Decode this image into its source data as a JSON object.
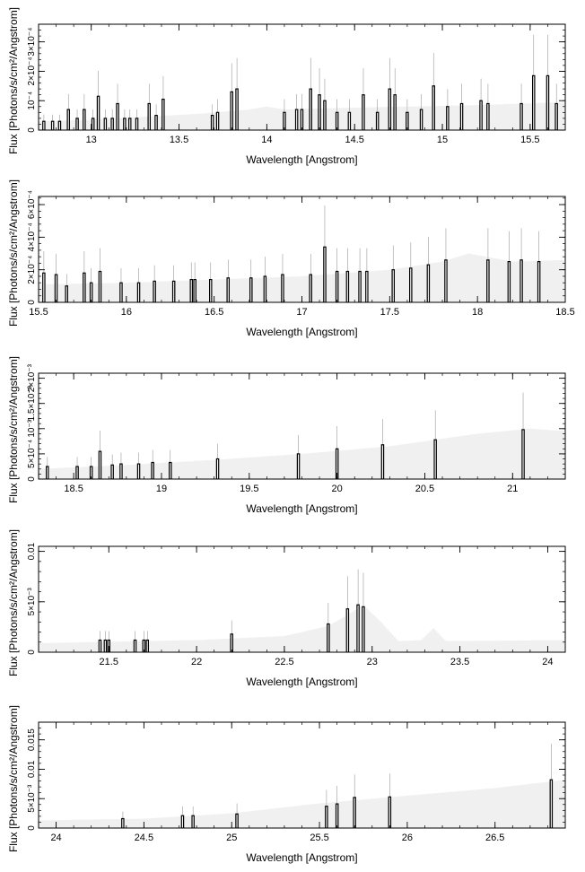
{
  "figure": {
    "xlabel": "Wavelength [Angstrom]",
    "ylabel": "Flux [Photons/s/cm²/Angstrom]"
  },
  "chart_data": [
    {
      "type": "bar",
      "xlim": [
        12.7,
        15.7
      ],
      "ylim": [
        0,
        0.00036
      ],
      "xticks": [
        13,
        13.5,
        14,
        14.5,
        15,
        15.5
      ],
      "xtick_labels": [
        "13",
        "13.5",
        "14",
        "14.5",
        "15",
        "15.5"
      ],
      "yticks": [
        0,
        0.0001,
        0.0002,
        0.0003
      ],
      "ytick_labels": [
        "0",
        "10⁻⁴",
        "2×10⁻⁴",
        "3×10⁻⁴"
      ],
      "model": [
        [
          12.7,
          3e-05
        ],
        [
          13.0,
          3.5e-05
        ],
        [
          13.3,
          4.5e-05
        ],
        [
          13.6,
          5.5e-05
        ],
        [
          13.9,
          7e-05
        ],
        [
          14.0,
          8e-05
        ],
        [
          14.1,
          7e-05
        ],
        [
          14.4,
          7.5e-05
        ],
        [
          14.8,
          8e-05
        ],
        [
          15.2,
          8.5e-05
        ],
        [
          15.7,
          9.5e-05
        ]
      ],
      "x": [
        12.73,
        12.78,
        12.82,
        12.87,
        12.92,
        12.96,
        13.01,
        13.04,
        13.08,
        13.12,
        13.15,
        13.19,
        13.22,
        13.26,
        13.33,
        13.37,
        13.41,
        13.69,
        13.72,
        13.8,
        13.83,
        14.1,
        14.17,
        14.2,
        14.25,
        14.3,
        14.33,
        14.4,
        14.47,
        14.55,
        14.63,
        14.7,
        14.73,
        14.8,
        14.88,
        14.95,
        15.03,
        15.11,
        15.22,
        15.26,
        15.45,
        15.52,
        15.6,
        15.65
      ],
      "y": [
        3e-05,
        3e-05,
        3e-05,
        7e-05,
        4e-05,
        7e-05,
        4e-05,
        0.000115,
        4e-05,
        4e-05,
        9e-05,
        4e-05,
        4e-05,
        4e-05,
        9e-05,
        5e-05,
        0.000105,
        5e-05,
        6e-05,
        0.00013,
        0.00014,
        6e-05,
        7e-05,
        7e-05,
        0.00014,
        0.00012,
        0.0001,
        6e-05,
        6e-05,
        0.00012,
        6e-05,
        0.00014,
        0.00012,
        6e-05,
        7e-05,
        0.00015,
        8e-05,
        9e-05,
        0.0001,
        9e-05,
        9e-05,
        0.000185,
        0.000185,
        9e-05
      ]
    },
    {
      "type": "bar",
      "xlim": [
        15.5,
        18.5
      ],
      "ylim": [
        0,
        0.00065
      ],
      "xticks": [
        15.5,
        16,
        16.5,
        17,
        17.5,
        18,
        18.5
      ],
      "xtick_labels": [
        "15.5",
        "16",
        "16.5",
        "17",
        "17.5",
        "18",
        "18.5"
      ],
      "yticks": [
        0,
        0.0002,
        0.0004,
        0.0006
      ],
      "ytick_labels": [
        "0",
        "2×10⁻⁴",
        "4×10⁻⁴",
        "6×10⁻⁴"
      ],
      "model": [
        [
          15.5,
          0.00011
        ],
        [
          16.0,
          0.00012
        ],
        [
          16.5,
          0.00014
        ],
        [
          17.0,
          0.00016
        ],
        [
          17.5,
          0.0002
        ],
        [
          17.8,
          0.00025
        ],
        [
          17.95,
          0.0003
        ],
        [
          18.05,
          0.00028
        ],
        [
          18.2,
          0.00025
        ],
        [
          18.5,
          0.00026
        ]
      ],
      "x": [
        15.53,
        15.6,
        15.66,
        15.76,
        15.8,
        15.85,
        15.97,
        16.07,
        16.16,
        16.27,
        16.37,
        16.39,
        16.48,
        16.58,
        16.71,
        16.79,
        16.89,
        17.05,
        17.13,
        17.2,
        17.26,
        17.33,
        17.37,
        17.52,
        17.62,
        17.72,
        17.82,
        18.06,
        18.18,
        18.25,
        18.35
      ],
      "y": [
        0.00018,
        0.00017,
        0.0001,
        0.00018,
        0.00012,
        0.00019,
        0.00012,
        0.00012,
        0.00013,
        0.00013,
        0.00014,
        0.00014,
        0.00014,
        0.00015,
        0.00015,
        0.00016,
        0.00017,
        0.00017,
        0.00034,
        0.00019,
        0.00019,
        0.00019,
        0.00019,
        0.0002,
        0.00021,
        0.00023,
        0.00026,
        0.00026,
        0.00025,
        0.00026,
        0.00025
      ]
    },
    {
      "type": "bar",
      "xlim": [
        18.3,
        21.3
      ],
      "ylim": [
        0,
        0.0021
      ],
      "xticks": [
        18.5,
        19,
        19.5,
        20,
        20.5,
        21
      ],
      "xtick_labels": [
        "18.5",
        "19",
        "19.5",
        "20",
        "20.5",
        "21"
      ],
      "yticks": [
        0,
        0.0005,
        0.001,
        0.0015,
        0.002
      ],
      "ytick_labels": [
        "0",
        "5×10⁻⁴",
        "10⁻³",
        "1.5×10⁻³",
        "2×10⁻³"
      ],
      "model": [
        [
          18.3,
          0.0002
        ],
        [
          18.8,
          0.00028
        ],
        [
          19.3,
          0.00038
        ],
        [
          19.8,
          0.0005
        ],
        [
          20.3,
          0.00065
        ],
        [
          20.8,
          0.0009
        ],
        [
          21.1,
          0.001
        ],
        [
          21.3,
          0.00095
        ]
      ],
      "x": [
        18.35,
        18.52,
        18.6,
        18.65,
        18.72,
        18.77,
        18.87,
        18.95,
        19.05,
        19.32,
        19.78,
        20.0,
        20.26,
        20.56,
        21.06
      ],
      "y": [
        0.00025,
        0.00025,
        0.00025,
        0.00055,
        0.00028,
        0.0003,
        0.0003,
        0.00033,
        0.00033,
        0.0004,
        0.0005,
        0.0006,
        0.00068,
        0.00078,
        0.00098
      ]
    },
    {
      "type": "bar",
      "xlim": [
        21.1,
        24.1
      ],
      "ylim": [
        0,
        0.0105
      ],
      "xticks": [
        21.5,
        22,
        22.5,
        23,
        23.5,
        24
      ],
      "xtick_labels": [
        "21.5",
        "22",
        "22.5",
        "23",
        "23.5",
        "24"
      ],
      "yticks": [
        0,
        0.005,
        0.01
      ],
      "ytick_labels": [
        "0",
        "5×10⁻³",
        "0.01"
      ],
      "model": [
        [
          21.1,
          0.0009
        ],
        [
          22.0,
          0.0012
        ],
        [
          22.5,
          0.0016
        ],
        [
          22.75,
          0.0026
        ],
        [
          22.85,
          0.0036
        ],
        [
          22.95,
          0.0047
        ],
        [
          23.05,
          0.003
        ],
        [
          23.15,
          0.0011
        ],
        [
          23.28,
          0.0012
        ],
        [
          23.35,
          0.0024
        ],
        [
          23.42,
          0.0011
        ],
        [
          24.1,
          0.0012
        ]
      ],
      "x": [
        21.45,
        21.48,
        21.5,
        21.65,
        21.7,
        21.72,
        22.2,
        22.75,
        22.86,
        22.92,
        22.95
      ],
      "y": [
        0.0012,
        0.0012,
        0.0012,
        0.0012,
        0.0012,
        0.0012,
        0.0018,
        0.0028,
        0.0043,
        0.0047,
        0.0045
      ]
    },
    {
      "type": "bar",
      "xlim": [
        23.9,
        26.9
      ],
      "ylim": [
        0,
        0.018
      ],
      "xticks": [
        24,
        24.5,
        25,
        25.5,
        26,
        26.5
      ],
      "xtick_labels": [
        "24",
        "24.5",
        "25",
        "25.5",
        "26",
        "26.5"
      ],
      "yticks": [
        0,
        0.005,
        0.01,
        0.015
      ],
      "ytick_labels": [
        "0",
        "5×10⁻³",
        "0.01",
        "0.015"
      ],
      "model": [
        [
          23.9,
          0.0013
        ],
        [
          24.5,
          0.0016
        ],
        [
          25.0,
          0.0025
        ],
        [
          25.5,
          0.0042
        ],
        [
          26.0,
          0.0055
        ],
        [
          26.5,
          0.0068
        ],
        [
          26.9,
          0.0082
        ]
      ],
      "x": [
        24.38,
        24.72,
        24.78,
        25.03,
        25.54,
        25.6,
        25.7,
        25.9,
        26.82
      ],
      "y": [
        0.0016,
        0.0021,
        0.0021,
        0.0024,
        0.0037,
        0.0041,
        0.0052,
        0.0053,
        0.0082
      ]
    }
  ]
}
